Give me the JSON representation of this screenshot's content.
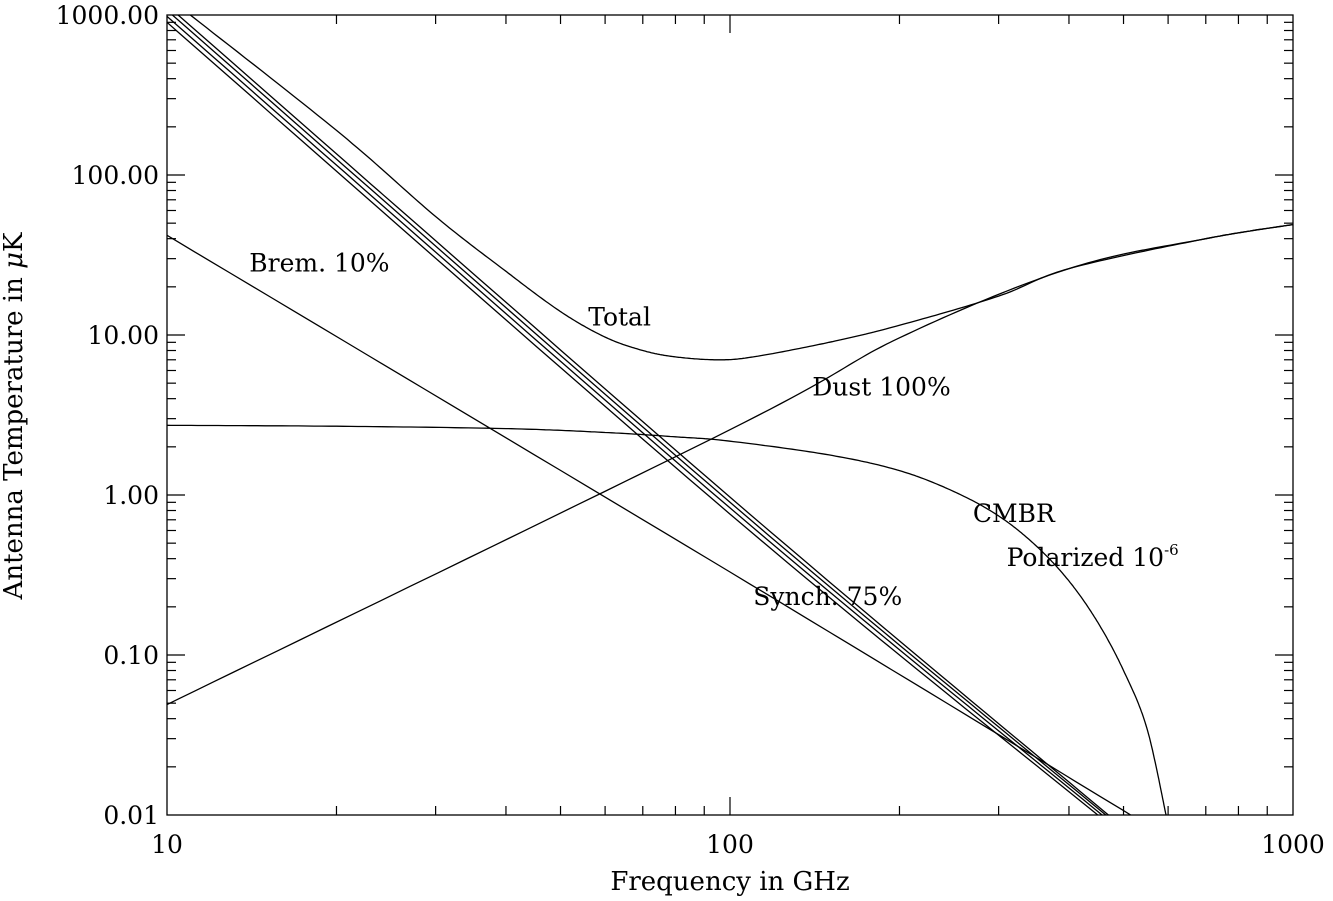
{
  "chart_data": {
    "type": "line",
    "title": "",
    "xlabel": "Frequency in GHz",
    "ylabel_prefix": "Antenna Temperature in ",
    "ylabel_unit_symbol": "μ",
    "ylabel_unit": "K",
    "xscale": "log",
    "yscale": "log",
    "xlim": [
      10,
      1000
    ],
    "ylim": [
      0.01,
      1000
    ],
    "x_ticks": [
      10,
      100,
      1000
    ],
    "x_tick_labels": [
      "10",
      "100",
      "1000"
    ],
    "y_ticks": [
      0.01,
      0.1,
      1,
      10,
      100,
      1000
    ],
    "y_tick_labels": [
      "0.01",
      "0.10",
      "1.00",
      "10.00",
      "100.00",
      "1000.00"
    ],
    "grid": false,
    "annotations": [
      {
        "text": "Brem. 10%",
        "x": 14,
        "y": 25
      },
      {
        "text": "Total",
        "x": 56,
        "y": 11.5
      },
      {
        "text": "Dust 100%",
        "x": 140,
        "y": 4.2
      },
      {
        "text": "CMBR",
        "x": 270,
        "y": 0.68
      },
      {
        "text": "Polarized 10",
        "sup": "-6",
        "x": 310,
        "y": 0.36
      },
      {
        "text": "Synch. 75%",
        "x": 110,
        "y": 0.205
      }
    ],
    "series": [
      {
        "values": [
          [
            10,
            2.725
          ],
          [
            20,
            2.69
          ],
          [
            40,
            2.6
          ],
          [
            60,
            2.46
          ],
          [
            80,
            2.31
          ],
          [
            100,
            2.17
          ],
          [
            150,
            1.78
          ],
          [
            200,
            1.42
          ],
          [
            250,
            1.05
          ],
          [
            300,
            0.74
          ],
          [
            350,
            0.48
          ],
          [
            400,
            0.29
          ],
          [
            450,
            0.16
          ],
          [
            500,
            0.08
          ],
          [
            550,
            0.035
          ],
          [
            595,
            0.01
          ]
        ]
      },
      {
        "values": [
          [
            10,
            42
          ],
          [
            100,
            0.33
          ],
          [
            515,
            0.01
          ]
        ]
      },
      {
        "values": [
          [
            10,
            0.049
          ],
          [
            100,
            2.56
          ],
          [
            200,
            9.6
          ],
          [
            400,
            26
          ],
          [
            700,
            40
          ],
          [
            1000,
            49
          ]
        ]
      },
      {
        "values": [
          [
            10,
            1150
          ],
          [
            100,
            0.97
          ],
          [
            470,
            0.01
          ]
        ]
      },
      {
        "values": [
          [
            10,
            1070
          ],
          [
            100,
            0.9
          ],
          [
            465,
            0.01
          ]
        ]
      },
      {
        "values": [
          [
            10,
            980
          ],
          [
            100,
            0.83
          ],
          [
            458,
            0.01
          ]
        ]
      },
      {
        "values": [
          [
            10,
            900
          ],
          [
            100,
            0.76
          ],
          [
            450,
            0.01
          ]
        ]
      },
      {
        "values": [
          [
            10,
            1300
          ],
          [
            20,
            190
          ],
          [
            30,
            55
          ],
          [
            40,
            25
          ],
          [
            50,
            14
          ],
          [
            60,
            9.7
          ],
          [
            70,
            8.0
          ],
          [
            80,
            7.3
          ],
          [
            95,
            7.0
          ],
          [
            110,
            7.3
          ],
          [
            150,
            9.0
          ],
          [
            200,
            11.5
          ],
          [
            300,
            17.5
          ],
          [
            400,
            26
          ],
          [
            700,
            40
          ],
          [
            1000,
            49
          ]
        ]
      }
    ]
  }
}
